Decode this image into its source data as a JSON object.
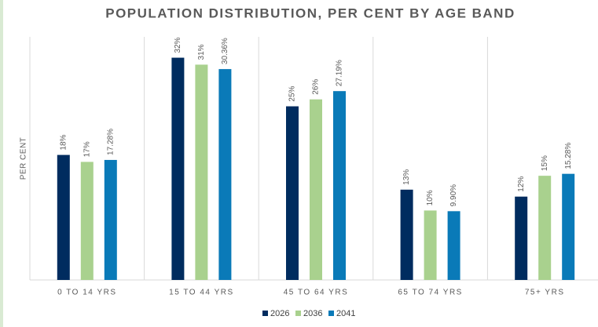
{
  "chart_data": {
    "type": "bar",
    "title": "POPULATION DISTRIBUTION, PER CENT BY AGE BAND",
    "y_label": "PER CENT",
    "categories": [
      "0 TO 14 YRS",
      "15 TO 44 YRS",
      "45 TO 64 YRS",
      "65 TO 74 YRS",
      "75+ YRS"
    ],
    "series": [
      {
        "name": "2026",
        "color": "#002c5f",
        "values": [
          18,
          32,
          25,
          13,
          12
        ],
        "value_labels": [
          "18%",
          "32%",
          "25%",
          "13%",
          "12%"
        ]
      },
      {
        "name": "2036",
        "color": "#a9d18e",
        "values": [
          17,
          31,
          26,
          10,
          15
        ],
        "value_labels": [
          "17%",
          "31%",
          "26%",
          "10%",
          "15%"
        ]
      },
      {
        "name": "2041",
        "color": "#0a7ab8",
        "values": [
          17.28,
          30.36,
          27.19,
          9.9,
          15.28
        ],
        "value_labels": [
          "17.28%",
          "30.36%",
          "27.19%",
          "9.90%",
          "15.28%"
        ]
      }
    ],
    "ylim": [
      0,
      35
    ],
    "legend": "bottom"
  }
}
